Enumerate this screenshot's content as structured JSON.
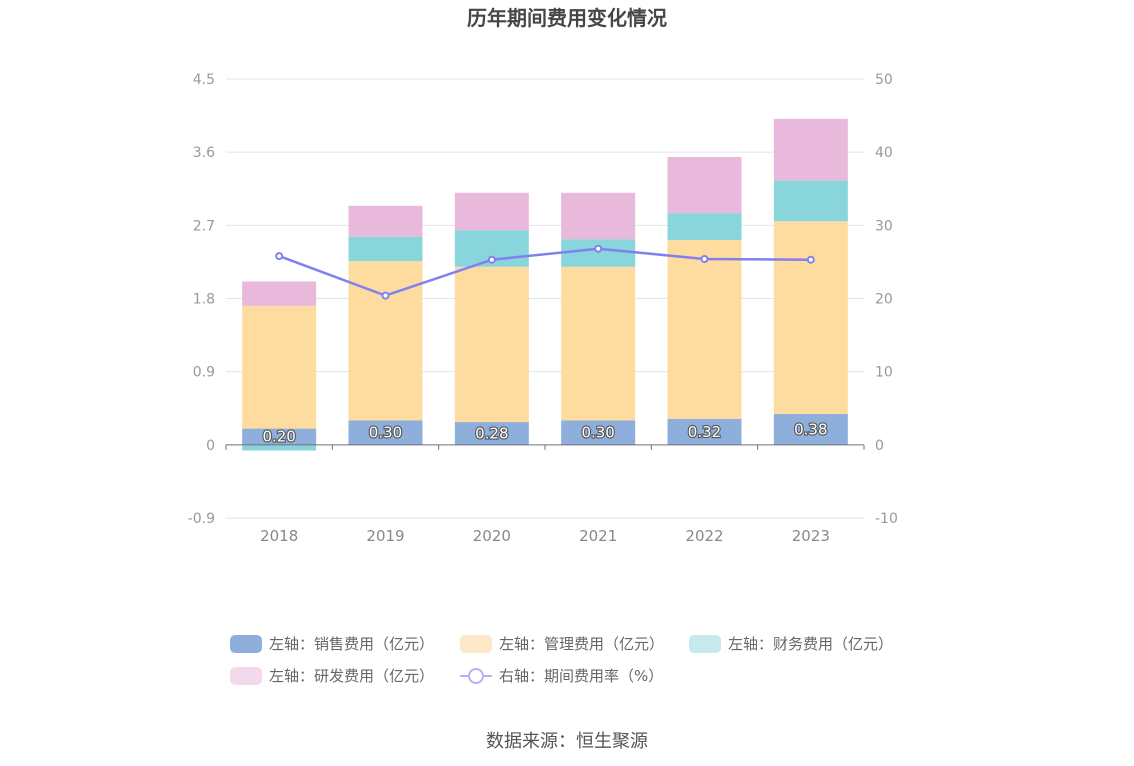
{
  "chart_data": {
    "type": "bar",
    "title": "历年期间费用变化情况",
    "categories": [
      "2018",
      "2019",
      "2020",
      "2021",
      "2022",
      "2023"
    ],
    "stacked": true,
    "y_left": {
      "ticks": [
        "-0.9",
        "0",
        "0.9",
        "1.8",
        "2.7",
        "3.6",
        "4.5"
      ],
      "ylim": [
        -0.9,
        4.5
      ]
    },
    "y_right": {
      "ticks": [
        "-10",
        "0",
        "10",
        "20",
        "30",
        "40",
        "50"
      ],
      "ylim": [
        -10,
        50
      ]
    },
    "series": [
      {
        "name": "左轴：销售费用（亿元）",
        "axis": "left",
        "type": "bar",
        "color": "#8eaedb",
        "values": [
          0.2,
          0.3,
          0.28,
          0.3,
          0.32,
          0.38
        ],
        "labels": [
          "0.20",
          "0.30",
          "0.28",
          "0.30",
          "0.32",
          "0.38"
        ]
      },
      {
        "name": "左轴：管理费用（亿元）",
        "axis": "left",
        "type": "bar",
        "color": "#fedb9e",
        "values": [
          1.51,
          1.96,
          1.91,
          1.89,
          2.2,
          2.37
        ]
      },
      {
        "name": "左轴：财务费用（亿元）",
        "axis": "left",
        "type": "bar",
        "color": "#88d5dc",
        "values": [
          -0.07,
          0.3,
          0.45,
          0.34,
          0.33,
          0.5
        ]
      },
      {
        "name": "左轴：研发费用（亿元）",
        "axis": "left",
        "type": "bar",
        "color": "#e8b9da",
        "values": [
          0.3,
          0.38,
          0.46,
          0.57,
          0.69,
          0.76
        ]
      },
      {
        "name": "右轴：期间费用率（%）",
        "axis": "right",
        "type": "line",
        "color": "#8080ee",
        "values": [
          25.8,
          20.4,
          25.3,
          26.8,
          25.4,
          25.3
        ]
      }
    ],
    "legend_position": "bottom",
    "grid": true
  },
  "source": "数据来源：恒生聚源"
}
